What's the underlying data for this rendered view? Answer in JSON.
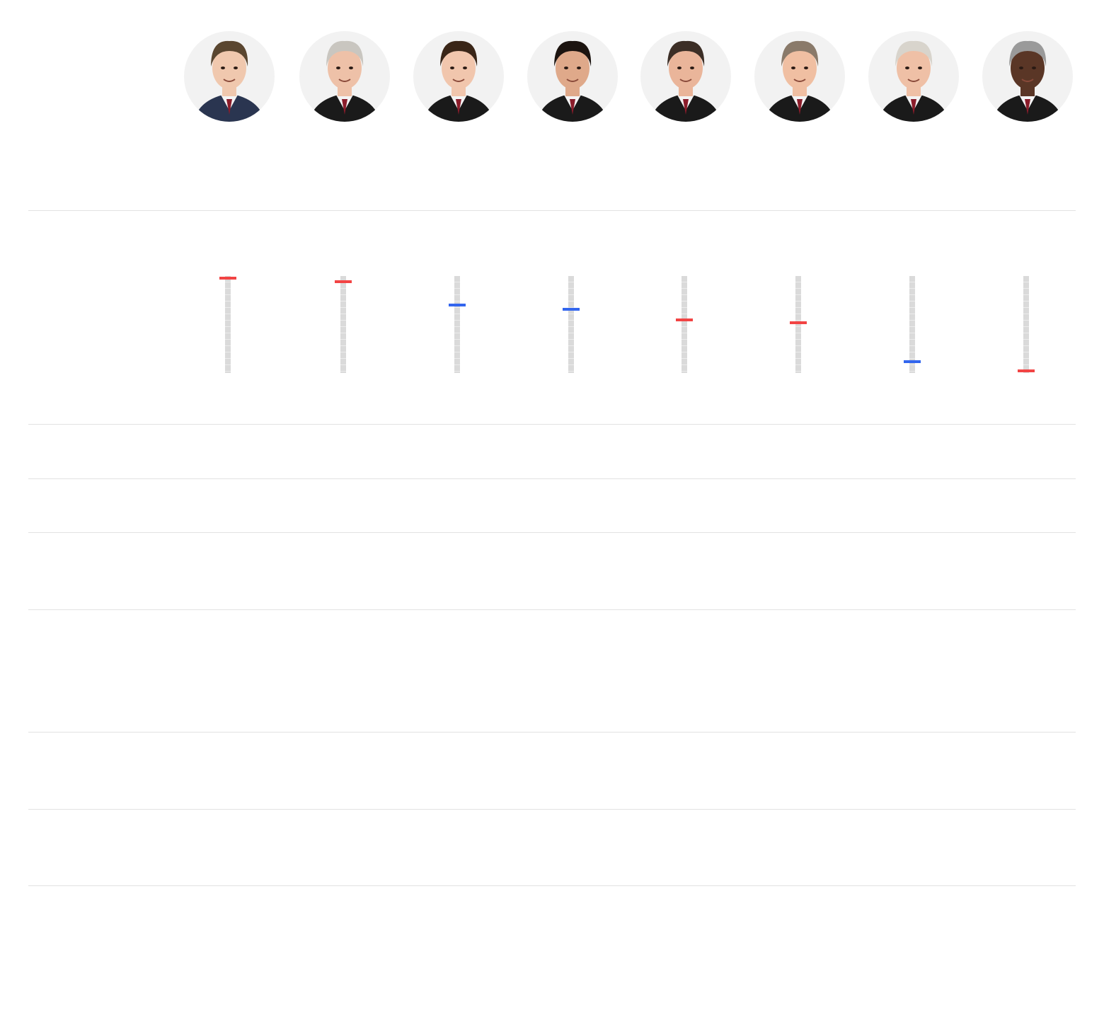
{
  "chart_data": {
    "type": "dot-gauge",
    "title": "",
    "columns": 8,
    "value_range": [
      0,
      1
    ],
    "series": [
      {
        "portrait": "justice-1",
        "level": 0.98,
        "color": "#f24444",
        "skin": "#f0c8ae",
        "hair": "#5a4630",
        "attire": "suit"
      },
      {
        "portrait": "justice-2",
        "level": 0.94,
        "color": "#f24444",
        "skin": "#eec1a8",
        "hair": "#c9c6c0",
        "attire": "robe"
      },
      {
        "portrait": "justice-3",
        "level": 0.7,
        "color": "#3366ee",
        "skin": "#f1c6ad",
        "hair": "#3a2618",
        "attire": "robe"
      },
      {
        "portrait": "justice-4",
        "level": 0.66,
        "color": "#3366ee",
        "skin": "#dfa98a",
        "hair": "#1c1410",
        "attire": "robe"
      },
      {
        "portrait": "justice-5",
        "level": 0.55,
        "color": "#f24444",
        "skin": "#eab59a",
        "hair": "#3c2e26",
        "attire": "robe"
      },
      {
        "portrait": "justice-6",
        "level": 0.52,
        "color": "#f24444",
        "skin": "#f0bfa2",
        "hair": "#8a7a6a",
        "attire": "robe"
      },
      {
        "portrait": "justice-7",
        "level": 0.12,
        "color": "#3366ee",
        "skin": "#efc0a6",
        "hair": "#d8d4cc",
        "attire": "robe"
      },
      {
        "portrait": "justice-8",
        "level": 0.02,
        "color": "#f24444",
        "skin": "#5a3626",
        "hair": "#9a9a9a",
        "attire": "robe"
      }
    ],
    "colors": {
      "conservative": "#f24444",
      "liberal": "#3366ee",
      "track": "#dadada",
      "rule": "#e2e2e2"
    },
    "grid": false,
    "legend": "none"
  }
}
